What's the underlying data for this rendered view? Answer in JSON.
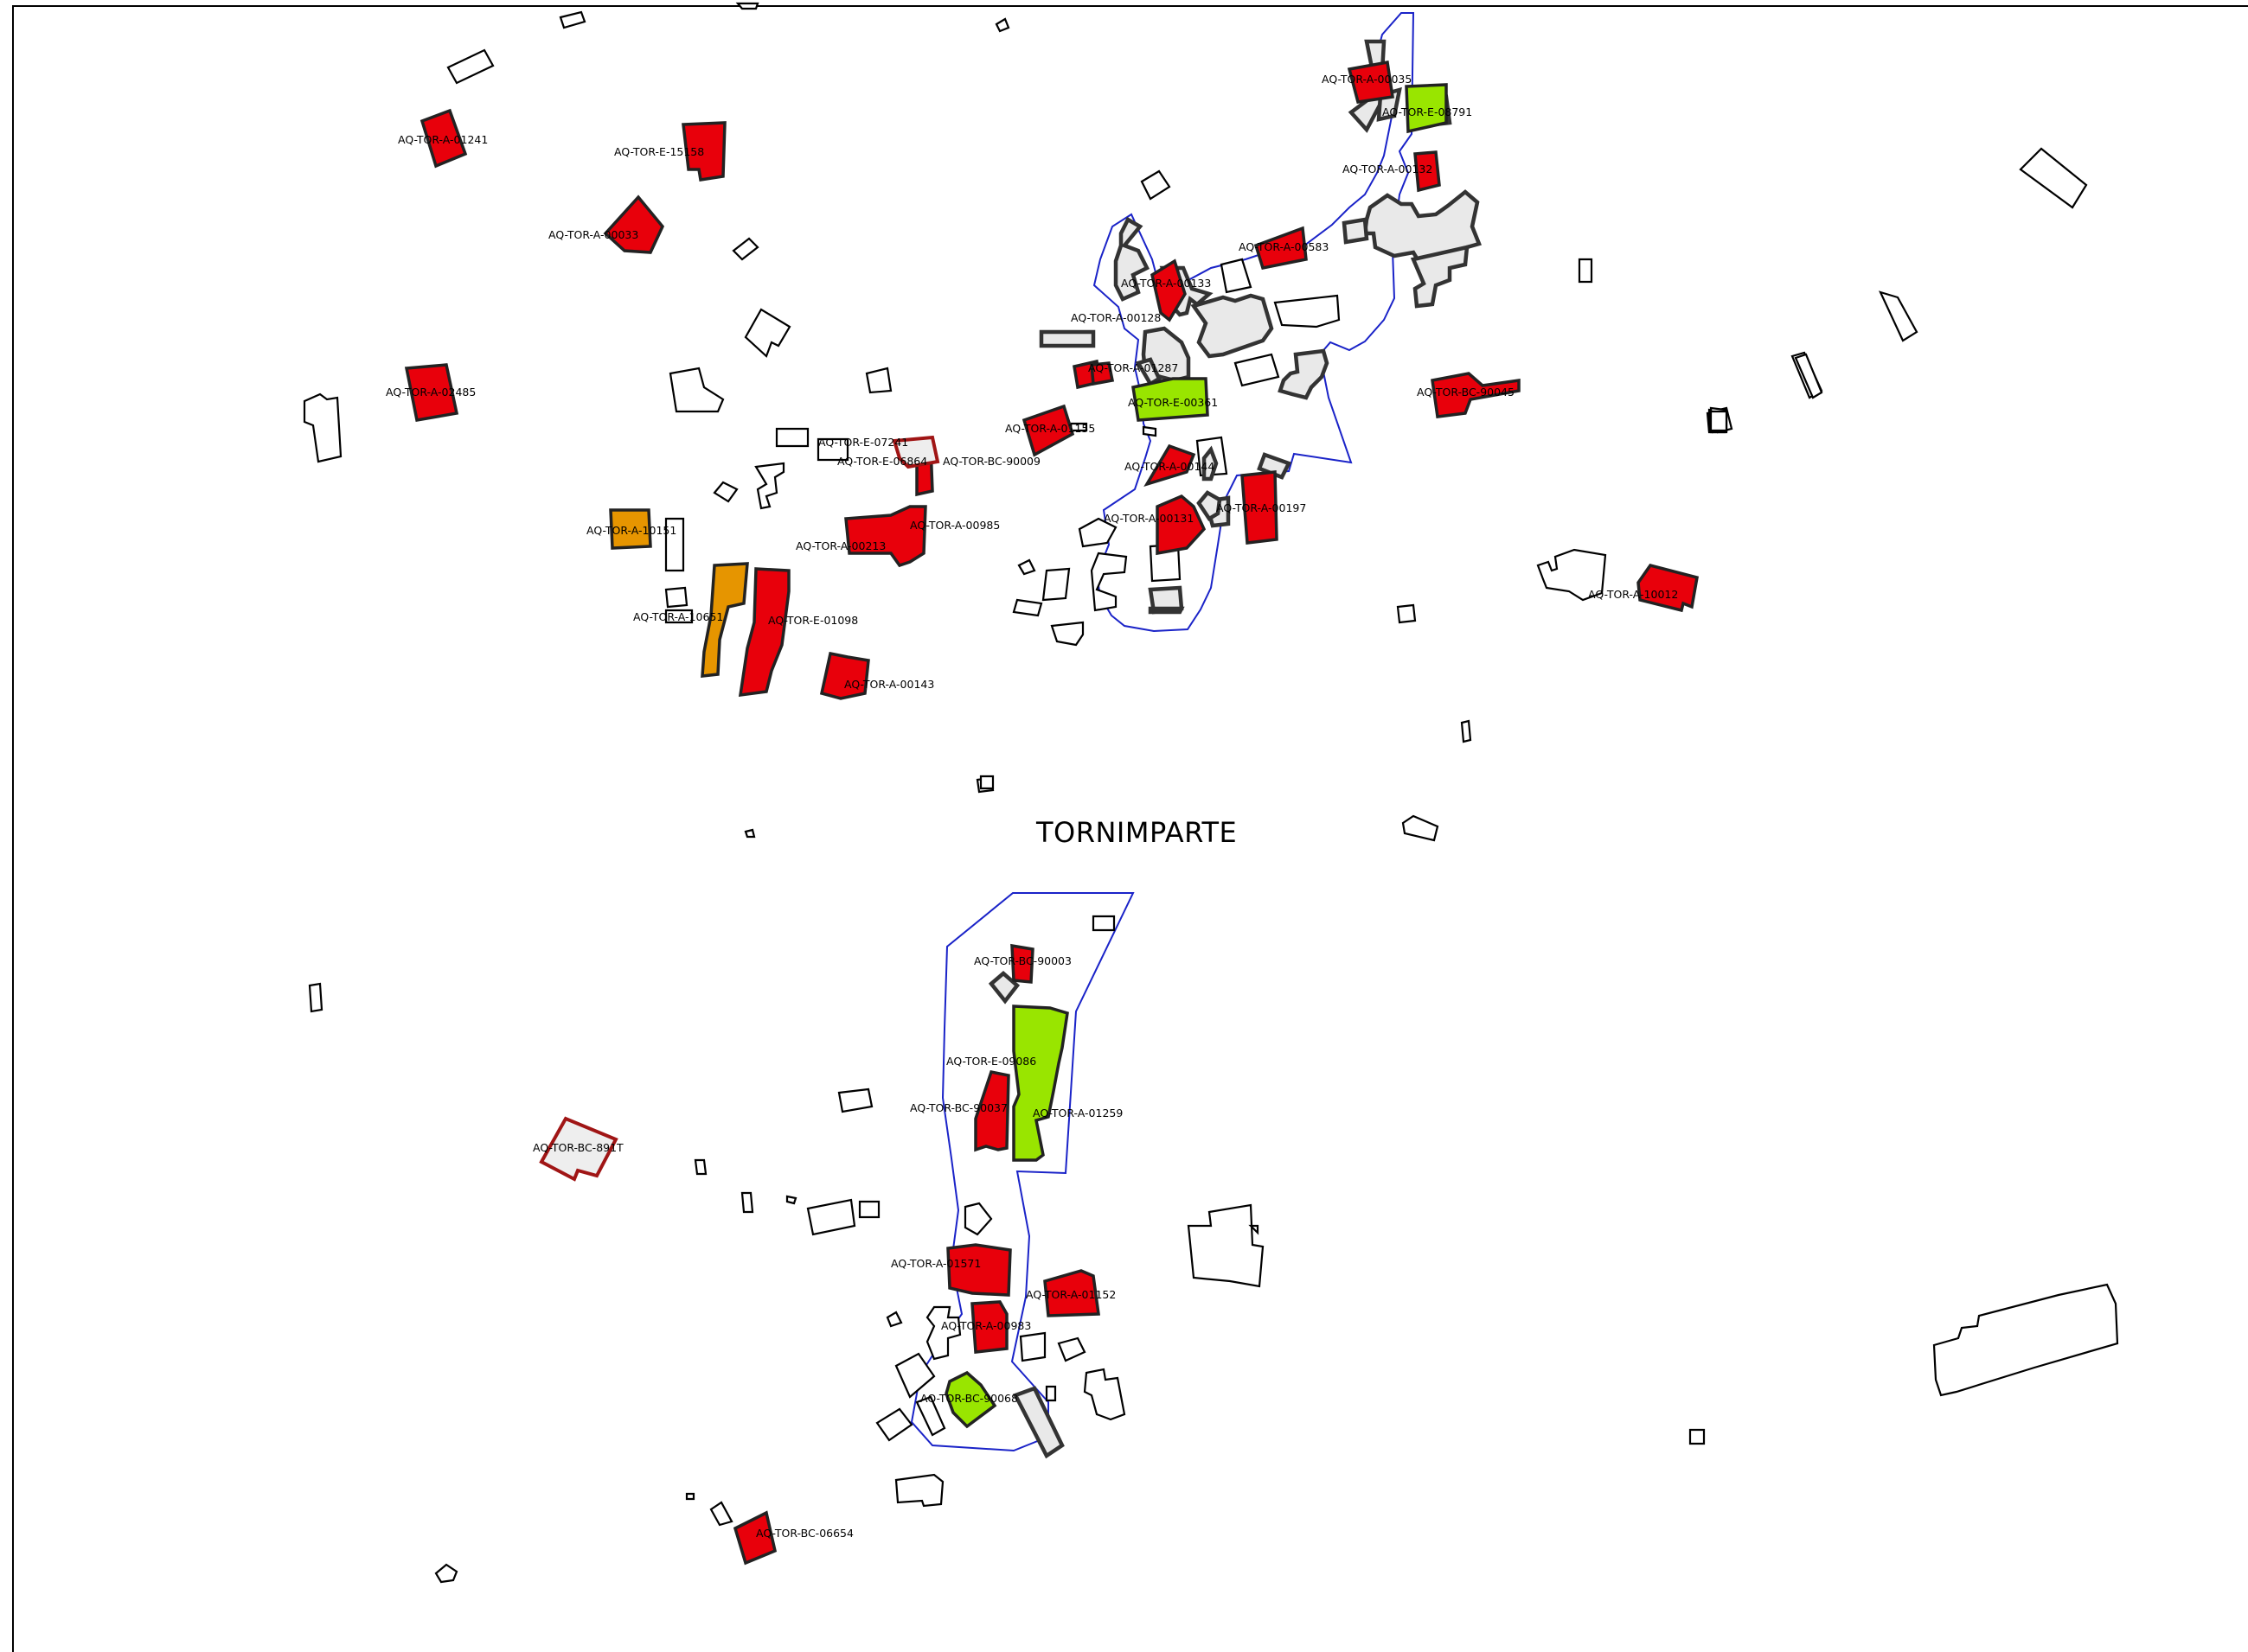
{
  "place_name": "TORNIMPARTE",
  "colors": {
    "red": "#e8000b",
    "green": "#99e500",
    "orange": "#e69500",
    "grey": "#e9e9e9",
    "boundary": "#1a23c8"
  },
  "labels": {
    "l01": "AQ-TOR-A-01241",
    "l02": "AQ-TOR-E-15158",
    "l03": "AQ-TOR-A-00033",
    "l04": "AQ-TOR-A-02485",
    "l05": "AQ-TOR-E-07241",
    "l06": "AQ-TOR-E-06864",
    "l07": "AQ-TOR-BC-90009",
    "l08": "AQ-TOR-A-10151",
    "l09": "AQ-TOR-A-00213",
    "l10": "AQ-TOR-A-00985",
    "l11": "AQ-TOR-A-10651",
    "l12": "AQ-TOR-E-01098",
    "l13": "AQ-TOR-A-00143",
    "l14": "AQ-TOR-A-00035",
    "l15": "AQ-TOR-E-08791",
    "l16": "AQ-TOR-A-00132",
    "l17": "AQ-TOR-A-00583",
    "l18": "AQ-TOR-A-00133",
    "l19": "AQ-TOR-A-00128",
    "l20": "AQ-TOR-A-01287",
    "l21": "AQ-TOR-E-00361",
    "l22": "AQ-TOR-BC-90045",
    "l23": "AQ-TOR-A-01155",
    "l24": "AQ-TOR-A-00144",
    "l25": "AQ-TOR-A-00131",
    "l26": "AQ-TOR-A-00197",
    "l27": "AQ-TOR-A-10012",
    "l28": "AQ-TOR-BC-90003",
    "l29": "AQ-TOR-E-09086",
    "l30": "AQ-TOR-BC-90037",
    "l31": "AQ-TOR-A-01259",
    "l32": "AQ-TOR-BC-891T",
    "l33": "AQ-TOR-A-01571",
    "l34": "AQ-TOR-A-01152",
    "l35": "AQ-TOR-A-00983",
    "l36": "AQ-TOR-BC-90068",
    "l37": "AQ-TOR-BC-06654"
  }
}
